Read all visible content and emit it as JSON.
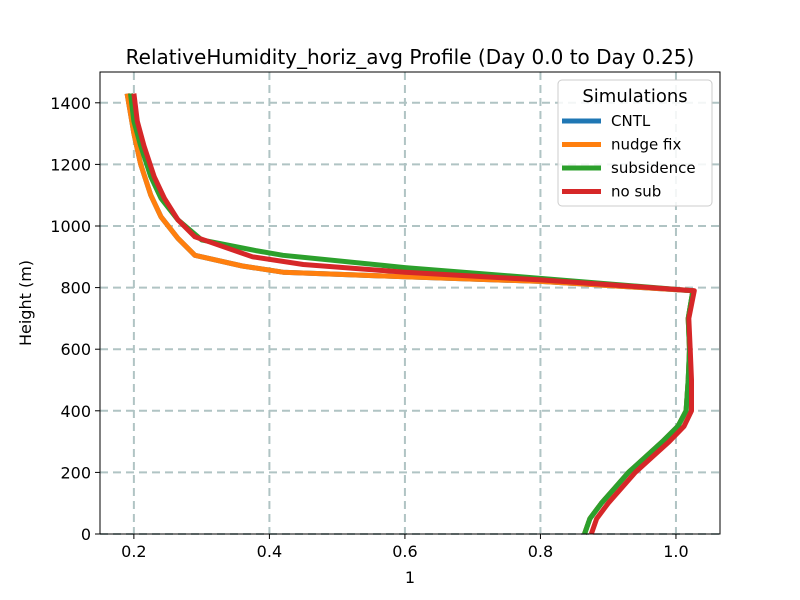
{
  "chart_data": {
    "type": "line",
    "title": "RelativeHumidity_horiz_avg Profile (Day 0.0 to Day 0.25)",
    "xlabel": "1",
    "ylabel": "Height (m)",
    "xlim": [
      0.15,
      1.065
    ],
    "ylim": [
      0,
      1500
    ],
    "xticks": [
      0.2,
      0.4,
      0.6,
      0.8,
      1.0
    ],
    "xtick_labels": [
      "0.2",
      "0.4",
      "0.6",
      "0.8",
      "1.0"
    ],
    "yticks": [
      0,
      200,
      400,
      600,
      800,
      1000,
      1200,
      1400
    ],
    "ytick_labels": [
      "0",
      "200",
      "400",
      "600",
      "800",
      "1000",
      "1200",
      "1400"
    ],
    "grid": true,
    "legend": {
      "title": "Simulations",
      "placement": "top-right"
    },
    "series": [
      {
        "name": "CNTL",
        "color": "#1f77b4",
        "points": [
          [
            0.865,
            0
          ],
          [
            0.873,
            50
          ],
          [
            0.89,
            100
          ],
          [
            0.91,
            150
          ],
          [
            0.93,
            200
          ],
          [
            0.955,
            250
          ],
          [
            0.98,
            300
          ],
          [
            1.003,
            350
          ],
          [
            1.015,
            400
          ],
          [
            1.018,
            500
          ],
          [
            1.02,
            600
          ],
          [
            1.018,
            700
          ],
          [
            1.025,
            790
          ],
          [
            0.8,
            820
          ],
          [
            0.6,
            835
          ],
          [
            0.42,
            850
          ],
          [
            0.36,
            870
          ],
          [
            0.29,
            905
          ],
          [
            0.265,
            960
          ],
          [
            0.24,
            1030
          ],
          [
            0.225,
            1100
          ],
          [
            0.21,
            1200
          ],
          [
            0.2,
            1300
          ],
          [
            0.19,
            1430
          ]
        ]
      },
      {
        "name": "nudge fix",
        "color": "#ff7f0e",
        "points": [
          [
            0.865,
            0
          ],
          [
            0.873,
            50
          ],
          [
            0.89,
            100
          ],
          [
            0.91,
            150
          ],
          [
            0.93,
            200
          ],
          [
            0.955,
            250
          ],
          [
            0.98,
            300
          ],
          [
            1.003,
            350
          ],
          [
            1.015,
            400
          ],
          [
            1.018,
            500
          ],
          [
            1.02,
            600
          ],
          [
            1.018,
            700
          ],
          [
            1.025,
            790
          ],
          [
            0.8,
            820
          ],
          [
            0.6,
            835
          ],
          [
            0.42,
            850
          ],
          [
            0.36,
            870
          ],
          [
            0.29,
            905
          ],
          [
            0.265,
            960
          ],
          [
            0.24,
            1030
          ],
          [
            0.225,
            1100
          ],
          [
            0.21,
            1200
          ],
          [
            0.2,
            1300
          ],
          [
            0.19,
            1430
          ]
        ]
      },
      {
        "name": "subsidence",
        "color": "#2ca02c",
        "points": [
          [
            0.865,
            0
          ],
          [
            0.873,
            50
          ],
          [
            0.89,
            100
          ],
          [
            0.91,
            150
          ],
          [
            0.93,
            200
          ],
          [
            0.955,
            250
          ],
          [
            0.98,
            300
          ],
          [
            1.003,
            350
          ],
          [
            1.015,
            400
          ],
          [
            1.018,
            500
          ],
          [
            1.02,
            600
          ],
          [
            1.018,
            700
          ],
          [
            1.025,
            790
          ],
          [
            0.8,
            830
          ],
          [
            0.6,
            865
          ],
          [
            0.42,
            905
          ],
          [
            0.38,
            920
          ],
          [
            0.3,
            955
          ],
          [
            0.265,
            1020
          ],
          [
            0.24,
            1090
          ],
          [
            0.225,
            1160
          ],
          [
            0.21,
            1260
          ],
          [
            0.2,
            1340
          ],
          [
            0.195,
            1430
          ]
        ]
      },
      {
        "name": "no sub",
        "color": "#d62728",
        "points": [
          [
            0.875,
            0
          ],
          [
            0.883,
            50
          ],
          [
            0.9,
            100
          ],
          [
            0.92,
            150
          ],
          [
            0.94,
            200
          ],
          [
            0.965,
            250
          ],
          [
            0.99,
            300
          ],
          [
            1.012,
            350
          ],
          [
            1.023,
            400
          ],
          [
            1.023,
            500
          ],
          [
            1.021,
            600
          ],
          [
            1.019,
            700
          ],
          [
            1.027,
            790
          ],
          [
            0.8,
            825
          ],
          [
            0.6,
            850
          ],
          [
            0.45,
            875
          ],
          [
            0.375,
            900
          ],
          [
            0.29,
            965
          ],
          [
            0.265,
            1020
          ],
          [
            0.245,
            1090
          ],
          [
            0.23,
            1160
          ],
          [
            0.215,
            1260
          ],
          [
            0.205,
            1340
          ],
          [
            0.2,
            1430
          ]
        ]
      }
    ]
  }
}
